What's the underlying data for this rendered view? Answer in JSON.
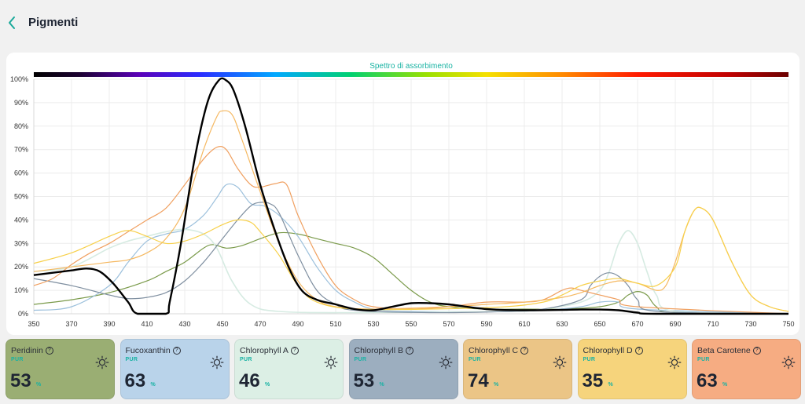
{
  "header": {
    "title": "Pigmenti",
    "back_icon": "chevron-left-icon"
  },
  "chart_data": {
    "type": "line",
    "title": "Spettro di assorbimento",
    "xlabel": "",
    "ylabel": "",
    "xlim": [
      350,
      750
    ],
    "ylim": [
      0,
      100
    ],
    "x_ticks": [
      "350",
      "370",
      "390",
      "410",
      "430",
      "450",
      "470",
      "490",
      "510",
      "530",
      "550",
      "570",
      "590",
      "610",
      "630",
      "650",
      "670",
      "690",
      "710",
      "730",
      "750"
    ],
    "y_ticks": [
      "0%",
      "10%",
      "20%",
      "30%",
      "40%",
      "50%",
      "60%",
      "70%",
      "80%",
      "90%",
      "100%"
    ],
    "grid": true,
    "legend": "none",
    "spectrum_bar": true,
    "series": [
      {
        "color": "#7a9a4a",
        "width": 1.2,
        "points": [
          [
            350,
            4
          ],
          [
            370,
            6
          ],
          [
            390,
            9
          ],
          [
            410,
            14
          ],
          [
            420,
            18
          ],
          [
            430,
            22
          ],
          [
            440,
            28
          ],
          [
            445,
            29.5
          ],
          [
            452,
            28
          ],
          [
            460,
            29
          ],
          [
            470,
            32
          ],
          [
            480,
            34.5
          ],
          [
            490,
            34
          ],
          [
            500,
            32
          ],
          [
            510,
            30
          ],
          [
            520,
            28
          ],
          [
            530,
            24
          ],
          [
            540,
            17
          ],
          [
            550,
            10
          ],
          [
            560,
            5
          ],
          [
            570,
            3
          ],
          [
            590,
            2
          ],
          [
            610,
            2
          ],
          [
            630,
            2
          ],
          [
            650,
            3
          ],
          [
            660,
            5
          ],
          [
            665,
            8
          ],
          [
            670,
            9.5
          ],
          [
            675,
            8
          ],
          [
            680,
            3
          ],
          [
            690,
            0.5
          ],
          [
            750,
            0
          ]
        ]
      },
      {
        "color": "#9cc0dc",
        "width": 1.2,
        "points": [
          [
            350,
            1.5
          ],
          [
            370,
            3
          ],
          [
            390,
            12
          ],
          [
            400,
            22
          ],
          [
            410,
            31
          ],
          [
            420,
            34
          ],
          [
            430,
            36
          ],
          [
            440,
            42
          ],
          [
            447,
            49.5
          ],
          [
            452,
            55
          ],
          [
            458,
            54
          ],
          [
            465,
            47
          ],
          [
            472,
            46
          ],
          [
            480,
            42
          ],
          [
            490,
            33
          ],
          [
            500,
            20
          ],
          [
            510,
            10
          ],
          [
            520,
            5
          ],
          [
            530,
            2
          ],
          [
            550,
            1
          ],
          [
            600,
            1
          ],
          [
            620,
            1.5
          ],
          [
            640,
            3
          ],
          [
            650,
            5
          ],
          [
            660,
            5
          ],
          [
            670,
            2
          ],
          [
            750,
            0
          ]
        ]
      },
      {
        "color": "#d6ebe2",
        "width": 1.6,
        "points": [
          [
            350,
            18
          ],
          [
            370,
            20
          ],
          [
            390,
            28
          ],
          [
            400,
            31
          ],
          [
            410,
            33
          ],
          [
            420,
            35
          ],
          [
            430,
            36
          ],
          [
            440,
            34
          ],
          [
            447,
            28
          ],
          [
            455,
            14
          ],
          [
            465,
            4
          ],
          [
            480,
            1
          ],
          [
            520,
            0.5
          ],
          [
            600,
            1
          ],
          [
            620,
            2
          ],
          [
            640,
            5
          ],
          [
            650,
            10
          ],
          [
            655,
            18
          ],
          [
            660,
            30
          ],
          [
            665,
            35.5
          ],
          [
            670,
            30
          ],
          [
            675,
            18
          ],
          [
            680,
            8
          ],
          [
            690,
            1
          ],
          [
            750,
            0
          ]
        ]
      },
      {
        "color": "#7f8fa0",
        "width": 1.2,
        "points": [
          [
            350,
            15
          ],
          [
            370,
            12
          ],
          [
            390,
            8
          ],
          [
            400,
            6.5
          ],
          [
            410,
            7
          ],
          [
            420,
            9
          ],
          [
            430,
            14
          ],
          [
            440,
            22
          ],
          [
            450,
            32
          ],
          [
            458,
            40
          ],
          [
            465,
            46
          ],
          [
            470,
            47.5
          ],
          [
            475,
            47
          ],
          [
            480,
            43
          ],
          [
            490,
            25
          ],
          [
            500,
            10
          ],
          [
            510,
            4
          ],
          [
            520,
            1.5
          ],
          [
            560,
            0.5
          ],
          [
            600,
            1
          ],
          [
            620,
            2
          ],
          [
            640,
            6
          ],
          [
            645,
            12
          ],
          [
            650,
            16
          ],
          [
            655,
            17.5
          ],
          [
            660,
            16
          ],
          [
            665,
            12
          ],
          [
            670,
            6
          ],
          [
            680,
            1
          ],
          [
            750,
            0
          ]
        ]
      },
      {
        "color": "#f0a060",
        "width": 1.2,
        "points": [
          [
            350,
            12
          ],
          [
            360,
            15
          ],
          [
            370,
            21
          ],
          [
            380,
            26
          ],
          [
            390,
            30
          ],
          [
            400,
            35
          ],
          [
            410,
            40
          ],
          [
            420,
            45
          ],
          [
            430,
            55
          ],
          [
            440,
            66
          ],
          [
            447,
            71
          ],
          [
            452,
            70
          ],
          [
            458,
            62
          ],
          [
            465,
            55
          ],
          [
            470,
            54
          ],
          [
            478,
            55.5
          ],
          [
            484,
            55
          ],
          [
            490,
            42
          ],
          [
            500,
            25
          ],
          [
            510,
            12
          ],
          [
            520,
            6
          ],
          [
            530,
            3
          ],
          [
            550,
            2
          ],
          [
            570,
            3
          ],
          [
            590,
            5
          ],
          [
            610,
            5
          ],
          [
            620,
            6
          ],
          [
            630,
            10
          ],
          [
            635,
            11
          ],
          [
            640,
            10
          ],
          [
            650,
            8
          ],
          [
            660,
            6
          ],
          [
            670,
            3
          ],
          [
            750,
            0
          ]
        ]
      },
      {
        "color": "#f5b860",
        "width": 1.2,
        "points": [
          [
            350,
            18
          ],
          [
            370,
            20
          ],
          [
            390,
            22
          ],
          [
            400,
            23
          ],
          [
            410,
            26
          ],
          [
            420,
            32
          ],
          [
            430,
            45
          ],
          [
            440,
            70
          ],
          [
            447,
            84
          ],
          [
            450,
            86.5
          ],
          [
            455,
            85
          ],
          [
            460,
            75
          ],
          [
            470,
            52
          ],
          [
            480,
            30
          ],
          [
            490,
            14
          ],
          [
            500,
            6
          ],
          [
            510,
            3
          ],
          [
            530,
            2
          ],
          [
            570,
            3
          ],
          [
            590,
            4
          ],
          [
            610,
            5
          ],
          [
            630,
            7
          ],
          [
            640,
            9
          ],
          [
            650,
            12
          ],
          [
            660,
            14
          ],
          [
            670,
            13
          ],
          [
            680,
            10
          ],
          [
            685,
            12
          ],
          [
            690,
            22
          ],
          [
            695,
            35
          ],
          [
            700,
            44
          ],
          [
            704,
            45
          ],
          [
            710,
            40
          ],
          [
            720,
            22
          ],
          [
            730,
            8
          ],
          [
            740,
            3
          ],
          [
            750,
            1
          ]
        ]
      },
      {
        "color": "#f7d04a",
        "width": 1.2,
        "points": [
          [
            350,
            21.5
          ],
          [
            370,
            26
          ],
          [
            390,
            33
          ],
          [
            400,
            35.5
          ],
          [
            410,
            33
          ],
          [
            420,
            30
          ],
          [
            430,
            31
          ],
          [
            440,
            34
          ],
          [
            450,
            38
          ],
          [
            458,
            40
          ],
          [
            465,
            39
          ],
          [
            470,
            35
          ],
          [
            480,
            25
          ],
          [
            490,
            12
          ],
          [
            500,
            5
          ],
          [
            520,
            2
          ],
          [
            560,
            2
          ],
          [
            600,
            3
          ],
          [
            620,
            5
          ],
          [
            630,
            8
          ],
          [
            640,
            12
          ],
          [
            650,
            14
          ],
          [
            660,
            15
          ],
          [
            670,
            13
          ],
          [
            680,
            12
          ],
          [
            690,
            20
          ],
          [
            695,
            35
          ],
          [
            700,
            44
          ],
          [
            704,
            45
          ],
          [
            710,
            40
          ],
          [
            720,
            22
          ],
          [
            730,
            8
          ],
          [
            740,
            3
          ],
          [
            750,
            1
          ]
        ]
      },
      {
        "color": "#000000",
        "width": 2.4,
        "points": [
          [
            350,
            16.5
          ],
          [
            360,
            17.5
          ],
          [
            370,
            18.5
          ],
          [
            378,
            19.3
          ],
          [
            385,
            18
          ],
          [
            392,
            13
          ],
          [
            400,
            5
          ],
          [
            405,
            0
          ],
          [
            420,
            0
          ],
          [
            422,
            5
          ],
          [
            428,
            30
          ],
          [
            435,
            65
          ],
          [
            442,
            90
          ],
          [
            448,
            99.5
          ],
          [
            452,
            99.5
          ],
          [
            456,
            95
          ],
          [
            462,
            80
          ],
          [
            470,
            55
          ],
          [
            478,
            35
          ],
          [
            485,
            20
          ],
          [
            492,
            10
          ],
          [
            500,
            6
          ],
          [
            510,
            4
          ],
          [
            520,
            2
          ],
          [
            530,
            1.5
          ],
          [
            540,
            3
          ],
          [
            550,
            4.5
          ],
          [
            560,
            4.5
          ],
          [
            570,
            4
          ],
          [
            590,
            2
          ],
          [
            610,
            1.5
          ],
          [
            640,
            1.8
          ],
          [
            650,
            1.8
          ],
          [
            660,
            1.5
          ],
          [
            670,
            0.5
          ],
          [
            680,
            0
          ],
          [
            750,
            0
          ]
        ]
      }
    ]
  },
  "pigments": [
    {
      "name": "Peridinin",
      "pur_label": "PUR",
      "value": "53",
      "unit": "%",
      "color": "#9aae73",
      "icon": "sun-icon"
    },
    {
      "name": "Fucoxanthin",
      "pur_label": "PUR",
      "value": "63",
      "unit": "%",
      "color": "#b9d3ea",
      "icon": "sun-icon"
    },
    {
      "name": "Chlorophyll A",
      "pur_label": "PUR",
      "value": "46",
      "unit": "%",
      "color": "#dcefe5",
      "icon": "sun-icon"
    },
    {
      "name": "Chlorophyll B",
      "pur_label": "PUR",
      "value": "53",
      "unit": "%",
      "color": "#9caebf",
      "icon": "sun-icon"
    },
    {
      "name": "Chlorophyll C",
      "pur_label": "PUR",
      "value": "74",
      "unit": "%",
      "color": "#ebc586",
      "icon": "sun-icon"
    },
    {
      "name": "Chlorophyll D",
      "pur_label": "PUR",
      "value": "35",
      "unit": "%",
      "color": "#f6d47c",
      "icon": "sun-icon"
    },
    {
      "name": "Beta Carotene",
      "pur_label": "PUR",
      "value": "63",
      "unit": "%",
      "color": "#f6ac82",
      "icon": "sun-icon"
    }
  ]
}
